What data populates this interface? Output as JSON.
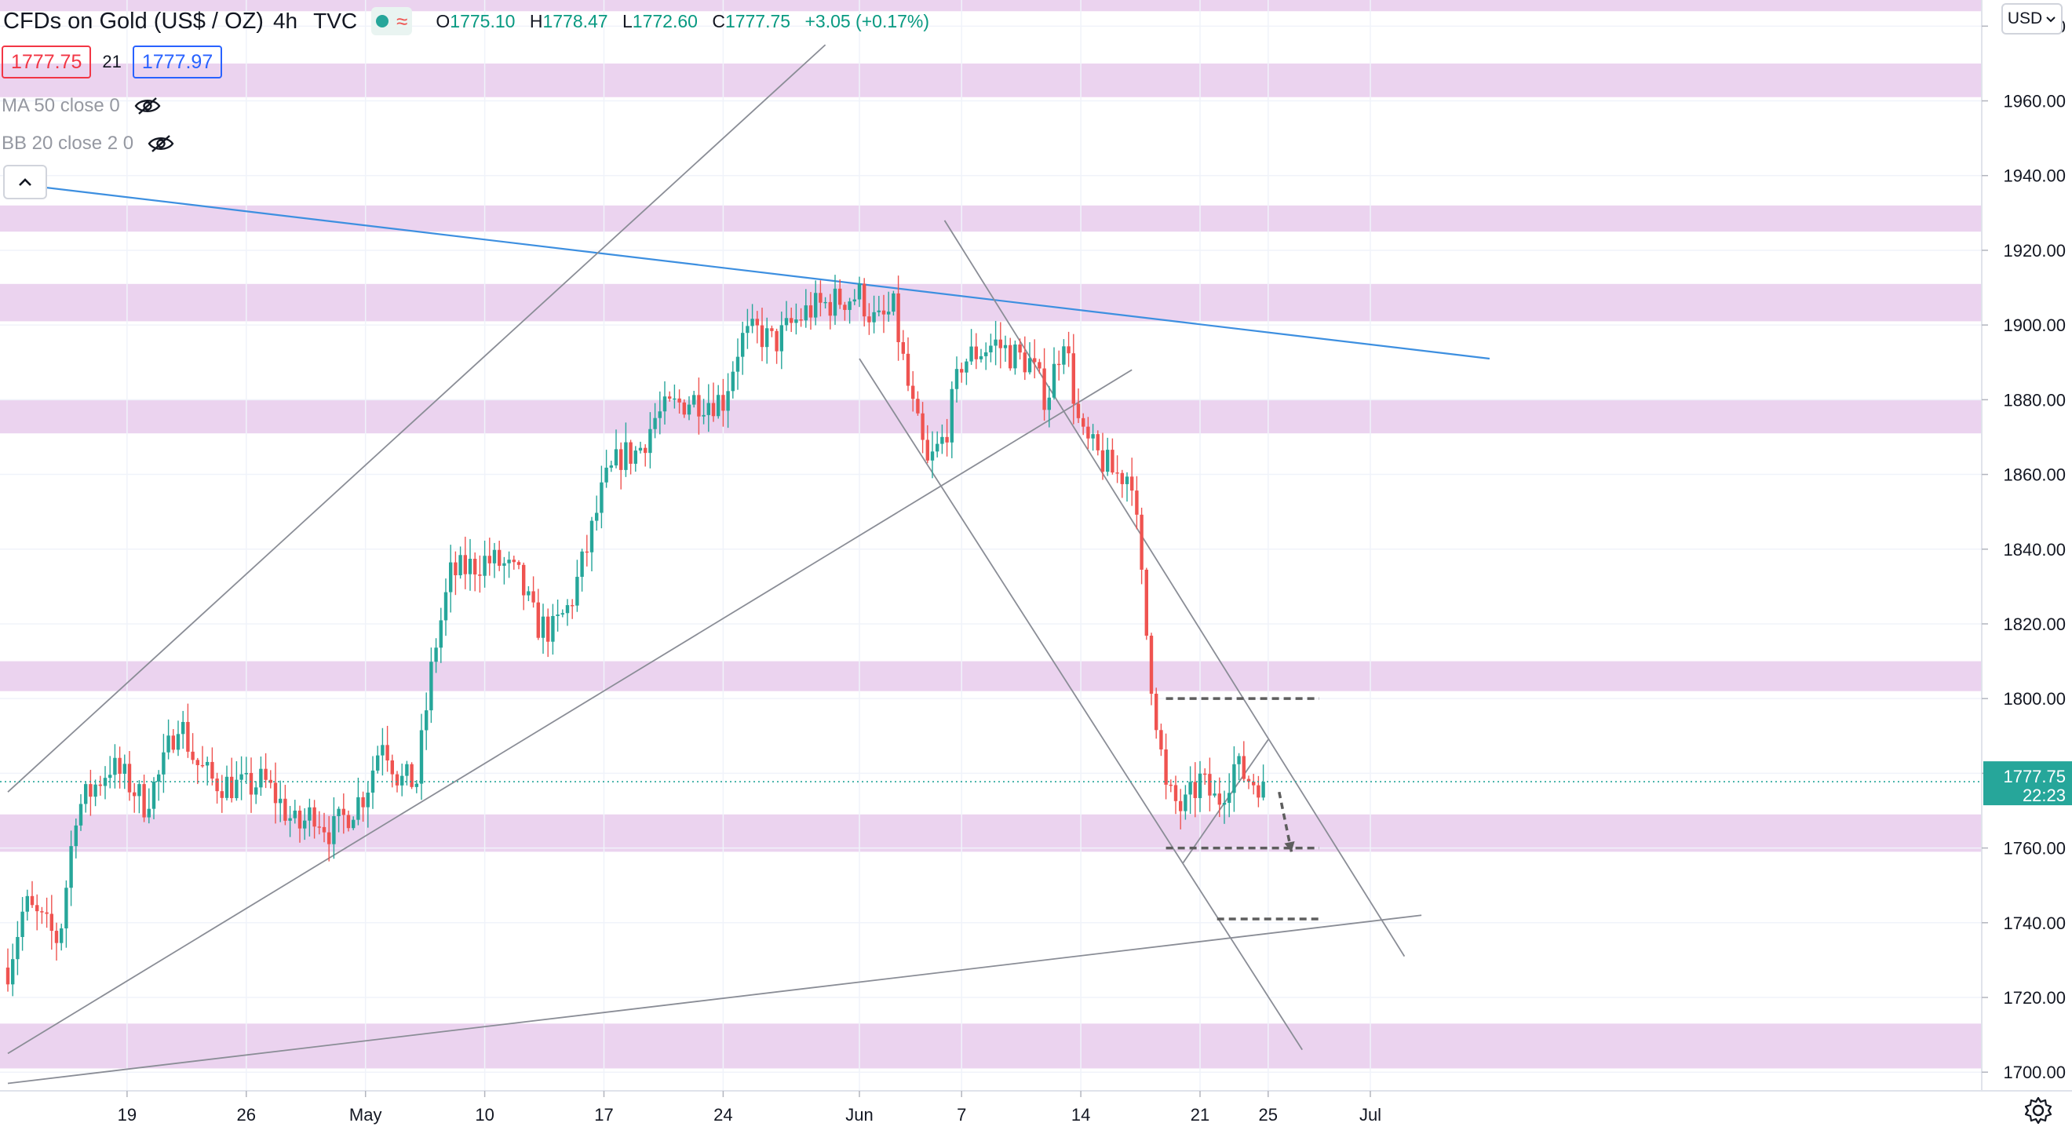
{
  "header": {
    "symbol": "CFDs on Gold (US$ / OZ)",
    "interval": "4h",
    "source": "TVC",
    "open_label": "O",
    "open": "1775.10",
    "high_label": "H",
    "high": "1778.47",
    "low_label": "L",
    "low": "1772.60",
    "close_label": "C",
    "close": "1777.75",
    "change": "+3.05 (+0.17%)"
  },
  "quote": {
    "bid": "1777.75",
    "spread": "21",
    "ask": "1777.97"
  },
  "indicators": [
    {
      "label": "MA 50 close 0"
    },
    {
      "label": "BB 20 close 2 0"
    }
  ],
  "price_scale": {
    "currency": "USD",
    "last_price": "1777.75",
    "countdown": "22:23"
  },
  "colors": {
    "up": "#26a69a",
    "down": "#ef5350",
    "zone": "#ebd3ef",
    "trendline_blue": "#2962ff",
    "last_price": "#26a69a"
  },
  "chart_data": {
    "type": "candlestick",
    "ylim": [
      1695,
      1987
    ],
    "y_ticks": [
      1700,
      1720,
      1740,
      1760,
      1780,
      1800,
      1820,
      1840,
      1860,
      1880,
      1900,
      1920,
      1940,
      1960,
      1980
    ],
    "x_ticks": [
      {
        "label": "19",
        "date": "2021-04-19"
      },
      {
        "label": "26",
        "date": "2021-04-26"
      },
      {
        "label": "May",
        "date": "2021-05-03"
      },
      {
        "label": "10",
        "date": "2021-05-10"
      },
      {
        "label": "17",
        "date": "2021-05-17"
      },
      {
        "label": "24",
        "date": "2021-05-24"
      },
      {
        "label": "Jun",
        "date": "2021-06-01"
      },
      {
        "label": "7",
        "date": "2021-06-07"
      },
      {
        "label": "14",
        "date": "2021-06-14"
      },
      {
        "label": "21",
        "date": "2021-06-21"
      },
      {
        "label": "25",
        "date": "2021-06-25"
      },
      {
        "label": "Jul",
        "date": "2021-07-01"
      }
    ],
    "last_price": 1777.75,
    "zones": [
      [
        1984,
        1990
      ],
      [
        1961,
        1970
      ],
      [
        1925,
        1932
      ],
      [
        1901,
        1911
      ],
      [
        1871,
        1880
      ],
      [
        1802,
        1810
      ],
      [
        1759,
        1769
      ],
      [
        1701,
        1713
      ]
    ],
    "trendlines": [
      {
        "color": "blue",
        "from": {
          "date": "2021-04-12",
          "price": 1938
        },
        "to": {
          "date": "2021-07-08",
          "price": 1891
        }
      },
      {
        "color": "gray",
        "from": {
          "date": "2021-04-12",
          "price": 1775
        },
        "to": {
          "date": "2021-05-30",
          "price": 1975
        }
      },
      {
        "color": "gray",
        "from": {
          "date": "2021-04-12",
          "price": 1705
        },
        "to": {
          "date": "2021-06-17",
          "price": 1888
        }
      },
      {
        "color": "gray",
        "from": {
          "date": "2021-04-12",
          "price": 1697
        },
        "to": {
          "date": "2021-07-04",
          "price": 1742
        }
      },
      {
        "color": "gray",
        "from": {
          "date": "2021-06-01",
          "price": 1891
        },
        "to": {
          "date": "2021-06-27",
          "price": 1706
        }
      },
      {
        "color": "gray",
        "from": {
          "date": "2021-06-06",
          "price": 1928
        },
        "to": {
          "date": "2021-07-03",
          "price": 1731
        }
      },
      {
        "color": "gray",
        "from": {
          "date": "2021-06-20",
          "price": 1756
        },
        "to": {
          "date": "2021-06-25",
          "price": 1789
        }
      }
    ],
    "dashed_levels": [
      {
        "price": 1800,
        "from": "2021-06-19",
        "to": "2021-06-28"
      },
      {
        "price": 1760,
        "from": "2021-06-19",
        "to": "2021-06-28"
      },
      {
        "price": 1741,
        "from": "2021-06-22",
        "to": "2021-06-28"
      }
    ],
    "projection": [
      {
        "date": "2021-06-25",
        "price": 1775
      },
      {
        "date": "2021-06-26",
        "price": 1759
      }
    ],
    "path_points": [
      {
        "date": "2021-04-12",
        "price": 1728
      },
      {
        "date": "2021-04-13",
        "price": 1745
      },
      {
        "date": "2021-04-14",
        "price": 1740
      },
      {
        "date": "2021-04-15",
        "price": 1735
      },
      {
        "date": "2021-04-16",
        "price": 1770
      },
      {
        "date": "2021-04-18",
        "price": 1782
      },
      {
        "date": "2021-04-19",
        "price": 1778
      },
      {
        "date": "2021-04-20",
        "price": 1772
      },
      {
        "date": "2021-04-21",
        "price": 1780
      },
      {
        "date": "2021-04-22",
        "price": 1795
      },
      {
        "date": "2021-04-23",
        "price": 1783
      },
      {
        "date": "2021-04-24",
        "price": 1778
      },
      {
        "date": "2021-04-26",
        "price": 1776
      },
      {
        "date": "2021-04-27",
        "price": 1778
      },
      {
        "date": "2021-04-28",
        "price": 1772
      },
      {
        "date": "2021-04-29",
        "price": 1765
      },
      {
        "date": "2021-04-30",
        "price": 1770
      },
      {
        "date": "2021-05-01",
        "price": 1764
      },
      {
        "date": "2021-05-03",
        "price": 1775
      },
      {
        "date": "2021-05-04",
        "price": 1790
      },
      {
        "date": "2021-05-05",
        "price": 1778
      },
      {
        "date": "2021-05-06",
        "price": 1778
      },
      {
        "date": "2021-05-07",
        "price": 1812
      },
      {
        "date": "2021-05-08",
        "price": 1833
      },
      {
        "date": "2021-05-10",
        "price": 1837
      },
      {
        "date": "2021-05-11",
        "price": 1836
      },
      {
        "date": "2021-05-12",
        "price": 1832
      },
      {
        "date": "2021-05-13",
        "price": 1820
      },
      {
        "date": "2021-05-14",
        "price": 1818
      },
      {
        "date": "2021-05-15",
        "price": 1825
      },
      {
        "date": "2021-05-16",
        "price": 1840
      },
      {
        "date": "2021-05-17",
        "price": 1857
      },
      {
        "date": "2021-05-18",
        "price": 1865
      },
      {
        "date": "2021-05-19",
        "price": 1866
      },
      {
        "date": "2021-05-20",
        "price": 1875
      },
      {
        "date": "2021-05-21",
        "price": 1878
      },
      {
        "date": "2021-05-22",
        "price": 1880
      },
      {
        "date": "2021-05-24",
        "price": 1880
      },
      {
        "date": "2021-05-25",
        "price": 1896
      },
      {
        "date": "2021-05-26",
        "price": 1898
      },
      {
        "date": "2021-05-27",
        "price": 1895
      },
      {
        "date": "2021-05-28",
        "price": 1900
      },
      {
        "date": "2021-05-29",
        "price": 1904
      },
      {
        "date": "2021-05-31",
        "price": 1907
      },
      {
        "date": "2021-06-01",
        "price": 1908
      },
      {
        "date": "2021-06-02",
        "price": 1900
      },
      {
        "date": "2021-06-03",
        "price": 1904
      },
      {
        "date": "2021-06-04",
        "price": 1880
      },
      {
        "date": "2021-06-05",
        "price": 1862
      },
      {
        "date": "2021-06-06",
        "price": 1870
      },
      {
        "date": "2021-06-07",
        "price": 1890
      },
      {
        "date": "2021-06-08",
        "price": 1893
      },
      {
        "date": "2021-06-09",
        "price": 1895
      },
      {
        "date": "2021-06-10",
        "price": 1892
      },
      {
        "date": "2021-06-11",
        "price": 1890
      },
      {
        "date": "2021-06-12",
        "price": 1880
      },
      {
        "date": "2021-06-13",
        "price": 1898
      },
      {
        "date": "2021-06-14",
        "price": 1870
      },
      {
        "date": "2021-06-15",
        "price": 1865
      },
      {
        "date": "2021-06-16",
        "price": 1860
      },
      {
        "date": "2021-06-17",
        "price": 1860
      },
      {
        "date": "2021-06-18",
        "price": 1810
      },
      {
        "date": "2021-06-19",
        "price": 1775
      },
      {
        "date": "2021-06-20",
        "price": 1770
      },
      {
        "date": "2021-06-21",
        "price": 1778
      },
      {
        "date": "2021-06-22",
        "price": 1772
      },
      {
        "date": "2021-06-23",
        "price": 1782
      },
      {
        "date": "2021-06-24",
        "price": 1778
      },
      {
        "date": "2021-06-25",
        "price": 1777.75
      }
    ]
  }
}
